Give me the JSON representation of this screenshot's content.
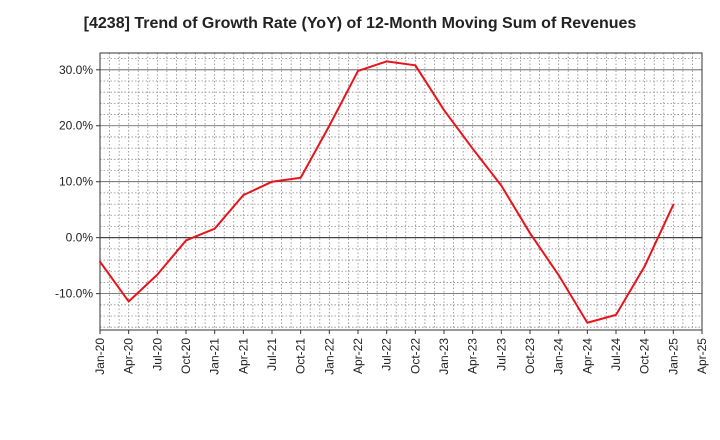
{
  "chart_data": {
    "type": "line",
    "title": "[4238]  Trend of Growth Rate (YoY) of 12-Month Moving Sum of Revenues",
    "xlabel": "",
    "ylabel": "",
    "ylim": [
      -16.5,
      33.0
    ],
    "grid": true,
    "x_ticks": [
      "Jan-20",
      "Apr-20",
      "Jul-20",
      "Oct-20",
      "Jan-21",
      "Apr-21",
      "Jul-21",
      "Oct-21",
      "Jan-22",
      "Apr-22",
      "Jul-22",
      "Oct-22",
      "Jan-23",
      "Apr-23",
      "Jul-23",
      "Oct-23",
      "Jan-24",
      "Apr-24",
      "Jul-24",
      "Oct-24",
      "Jan-25",
      "Apr-25"
    ],
    "y_ticks": [
      {
        "value": -10,
        "label": "-10.0%"
      },
      {
        "value": 0,
        "label": "0.0%"
      },
      {
        "value": 10,
        "label": "10.0%"
      },
      {
        "value": 20,
        "label": "20.0%"
      },
      {
        "value": 30,
        "label": "30.0%"
      }
    ],
    "series": [
      {
        "color": "#e8141c",
        "x": [
          "Jan-20",
          "Apr-20",
          "Jul-20",
          "Oct-20",
          "Jan-21",
          "Apr-21",
          "Jul-21",
          "Oct-21",
          "Jan-22",
          "Apr-22",
          "Jul-22",
          "Oct-22",
          "Jan-23",
          "Apr-23",
          "Jul-23",
          "Oct-23",
          "Jan-24",
          "Apr-24",
          "Jul-24",
          "Oct-24",
          "Jan-25"
        ],
        "values": [
          -4.3,
          -11.4,
          -6.6,
          -0.5,
          1.6,
          7.6,
          10.0,
          10.7,
          20.0,
          29.8,
          31.5,
          30.8,
          22.8,
          15.9,
          9.3,
          0.8,
          -6.7,
          -15.2,
          -13.8,
          -5.1,
          5.9
        ]
      }
    ]
  }
}
